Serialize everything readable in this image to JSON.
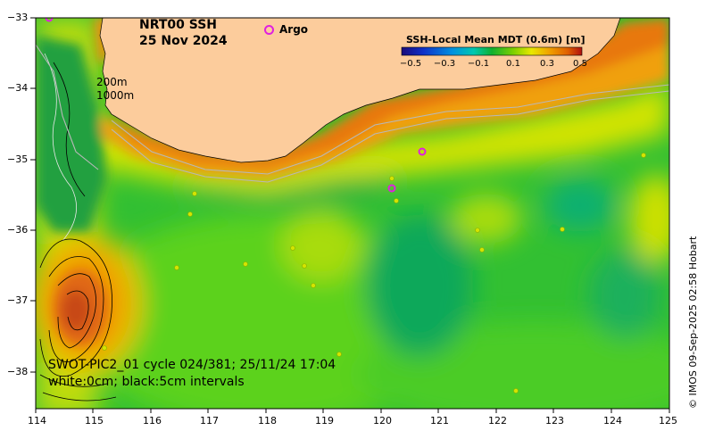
{
  "map": {
    "title_line1": "NRT00 SSH",
    "title_line2": "25 Nov 2024",
    "argo_label": "Argo",
    "depth_label1": "200m",
    "depth_label2": "1000m",
    "colorbar_title": "SSH-Local Mean MDT (0.6m) [m]",
    "colorbar_ticks": [
      "−0.5",
      "−0.3",
      "−0.1",
      "0.1",
      "0.3",
      "0.5"
    ],
    "colorbar_colors": [
      "#1a0b7a",
      "#1030c8",
      "#0090e0",
      "#00c8b0",
      "#10b030",
      "#7ed000",
      "#e8e800",
      "#f0a000",
      "#e06000",
      "#b01010"
    ],
    "swot_line1": "SWOT-PIC2_01 cycle 024/381; 25/11/24 17:04",
    "swot_line2": "white:0cm; black:5cm intervals",
    "credit": "© IMOS 09-Sep-2025 02:58 Hobart",
    "lat_ticks": [
      "−33",
      "−34",
      "−35",
      "−36",
      "−37",
      "−38"
    ],
    "lon_ticks": [
      "114",
      "115",
      "116",
      "117",
      "118",
      "119",
      "120",
      "121",
      "122",
      "123",
      "124",
      "125"
    ],
    "land_color": "#fccc9c",
    "argo_color": "#e020e0"
  }
}
